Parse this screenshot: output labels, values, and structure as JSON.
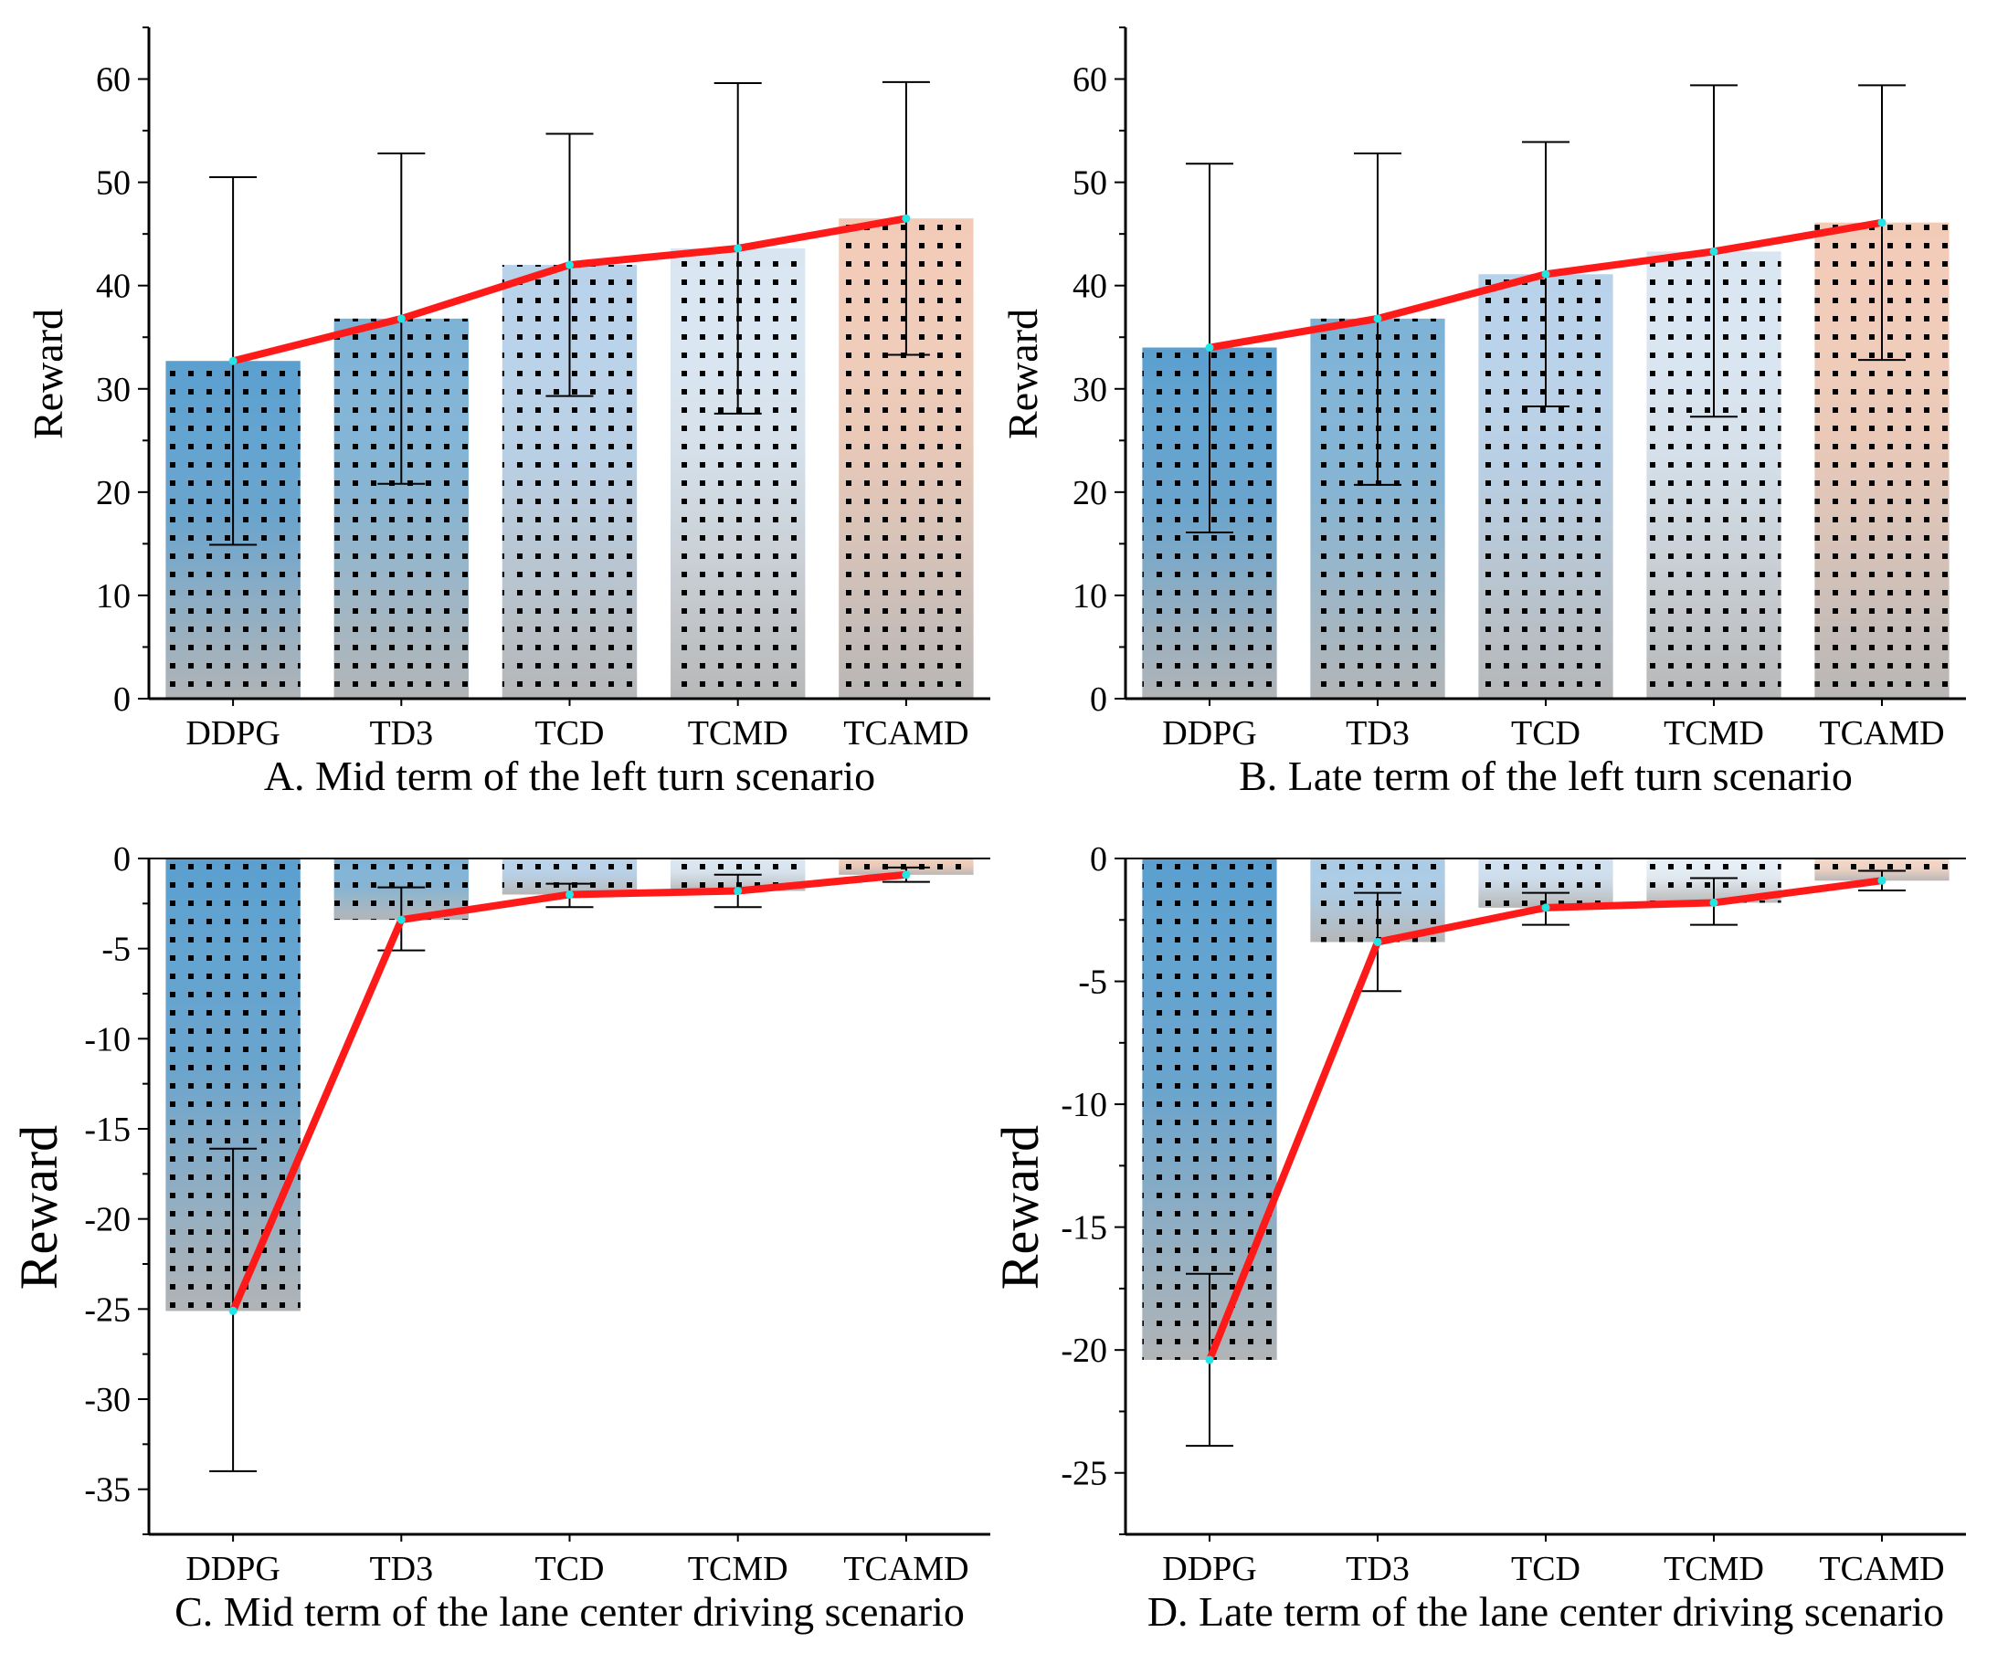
{
  "chart_data": [
    {
      "id": "A",
      "type": "bar+line",
      "title": "A. Mid term of the left turn scenario",
      "xlabel": "",
      "ylabel": "Reward",
      "categories": [
        "DDPG",
        "TD3",
        "TCD",
        "TCMD",
        "TCAMD"
      ],
      "values": [
        32.7,
        36.8,
        42.0,
        43.6,
        46.5
      ],
      "error_low": [
        14.9,
        20.8,
        29.3,
        27.6,
        33.3
      ],
      "error_high": [
        50.5,
        52.8,
        54.7,
        59.6,
        59.7
      ],
      "ylim": [
        0,
        65
      ],
      "yticks": [
        0,
        10,
        20,
        30,
        40,
        50,
        60
      ],
      "colors": [
        "#5a9fcf",
        "#7cb2d6",
        "#b8d2ea",
        "#d9e6f2",
        "#f2cbb7"
      ]
    },
    {
      "id": "B",
      "type": "bar+line",
      "title": "B. Late term of the left turn scenario",
      "xlabel": "",
      "ylabel": "Reward",
      "categories": [
        "DDPG",
        "TD3",
        "TCD",
        "TCMD",
        "TCAMD"
      ],
      "values": [
        34.0,
        36.8,
        41.1,
        43.3,
        46.1
      ],
      "error_low": [
        16.1,
        20.7,
        28.3,
        27.3,
        32.8
      ],
      "error_high": [
        51.8,
        52.8,
        53.9,
        59.4,
        59.4
      ],
      "ylim": [
        0,
        65
      ],
      "yticks": [
        0,
        10,
        20,
        30,
        40,
        50,
        60
      ],
      "colors": [
        "#5a9fcf",
        "#7cb2d6",
        "#b8d2ea",
        "#d9e6f2",
        "#f2cbb7"
      ]
    },
    {
      "id": "C",
      "type": "bar+line",
      "title": "C. Mid term of the lane center driving scenario",
      "xlabel": "",
      "ylabel": "Reward",
      "categories": [
        "DDPG",
        "TD3",
        "TCD",
        "TCMD",
        "TCAMD"
      ],
      "values": [
        -25.1,
        -3.4,
        -2.0,
        -1.8,
        -0.9
      ],
      "error_low": [
        -34.0,
        -5.1,
        -2.7,
        -2.7,
        -1.3
      ],
      "error_high": [
        -16.1,
        -1.6,
        -1.4,
        -0.9,
        -0.5
      ],
      "ylim": [
        -37.5,
        0
      ],
      "yticks": [
        0,
        -5,
        -10,
        -15,
        -20,
        -25,
        -30,
        -35
      ],
      "colors": [
        "#5a9fcf",
        "#7cb2d6",
        "#b8d2ea",
        "#d9e6f2",
        "#f2cbb7"
      ]
    },
    {
      "id": "D",
      "type": "bar+line",
      "title": "D. Late term of the lane center driving scenario",
      "xlabel": "",
      "ylabel": "Reward",
      "categories": [
        "DDPG",
        "TD3",
        "TCD",
        "TCMD",
        "TCAMD"
      ],
      "values": [
        -20.4,
        -3.4,
        -2.0,
        -1.8,
        -0.9
      ],
      "error_low": [
        -23.9,
        -5.4,
        -2.7,
        -2.7,
        -1.3
      ],
      "error_high": [
        -16.9,
        -1.4,
        -1.4,
        -0.8,
        -0.5
      ],
      "ylim": [
        -27.5,
        0
      ],
      "yticks": [
        0,
        -5,
        -10,
        -15,
        -20,
        -25
      ],
      "colors": [
        "#5a9fcf",
        "#a9cbe6",
        "#cfe0f0",
        "#e6eff7",
        "#f4d4c4"
      ]
    }
  ]
}
